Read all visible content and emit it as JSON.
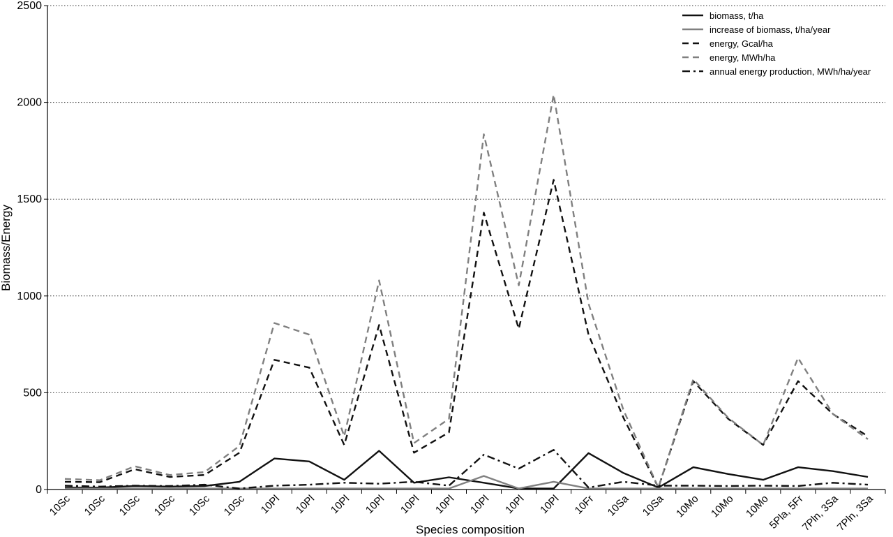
{
  "chart_data": {
    "type": "line",
    "title": "",
    "xlabel": "Species composition",
    "ylabel": "Biomass/Energy",
    "ylim": [
      0,
      2500
    ],
    "yticks": [
      0,
      500,
      1000,
      1500,
      2000,
      2500
    ],
    "grid": "horizontal dotted",
    "legend_position": "top-right",
    "categories": [
      "10Sc",
      "10Sc",
      "10Sc",
      "10Sc",
      "10Sc",
      "10Sc",
      "10Pl",
      "10Pl",
      "10Pl",
      "10Pl",
      "10Pl",
      "10Pl",
      "10Pl",
      "10Pl",
      "10Pl",
      "10Fr",
      "10Sa",
      "10Sa",
      "10Mo",
      "10Mo",
      "10Mo",
      "5Pla, 5Fr",
      "7Pln, 3Sa",
      "7Pln, 3Sa"
    ],
    "series": [
      {
        "name": "biomass, t/ha",
        "color": "#111111",
        "dash": "solid",
        "values": [
          10,
          10,
          18,
          15,
          18,
          40,
          160,
          145,
          50,
          200,
          35,
          63,
          35,
          5,
          5,
          188,
          85,
          10,
          115,
          80,
          50,
          115,
          95,
          65
        ]
      },
      {
        "name": "increase of biomass, t/ha/year",
        "color": "#808080",
        "dash": "solid",
        "values": [
          5,
          5,
          5,
          5,
          5,
          5,
          5,
          5,
          5,
          5,
          5,
          5,
          70,
          5,
          40,
          5,
          5,
          5,
          5,
          5,
          5,
          5,
          5,
          5
        ]
      },
      {
        "name": "energy, Gcal/ha",
        "color": "#111111",
        "dash": "dash",
        "values": [
          40,
          38,
          105,
          65,
          75,
          190,
          670,
          630,
          230,
          850,
          190,
          295,
          1430,
          830,
          1600,
          800,
          370,
          10,
          560,
          365,
          230,
          560,
          390,
          275
        ]
      },
      {
        "name": "energy, MWh/ha",
        "color": "#808080",
        "dash": "dash",
        "values": [
          55,
          48,
          120,
          75,
          90,
          225,
          860,
          800,
          275,
          1080,
          240,
          365,
          1835,
          1055,
          2040,
          960,
          410,
          10,
          570,
          370,
          230,
          680,
          390,
          260
        ]
      },
      {
        "name": "annual energy production, MWh/ha/year",
        "color": "#111111",
        "dash": "dashdot",
        "values": [
          20,
          15,
          20,
          18,
          25,
          5,
          20,
          25,
          35,
          30,
          40,
          20,
          180,
          108,
          205,
          10,
          40,
          20,
          20,
          18,
          20,
          18,
          35,
          25
        ]
      }
    ]
  }
}
